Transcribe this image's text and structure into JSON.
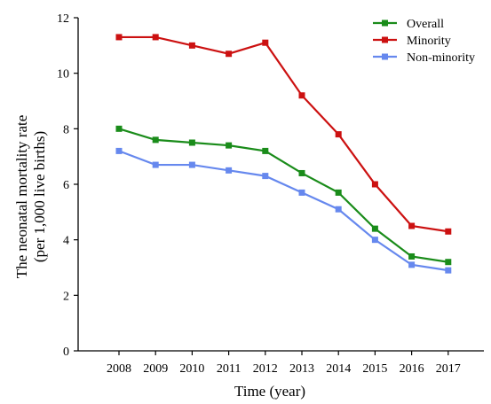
{
  "chart_data": {
    "type": "line",
    "title": "",
    "xlabel": "Time (year)",
    "ylabel_lines": [
      "The  neonatal mortality rate",
      "(per 1,000 live births)"
    ],
    "x": [
      "2008",
      "2009",
      "2010",
      "2011",
      "2012",
      "2013",
      "2014",
      "2015",
      "2016",
      "2017"
    ],
    "ylim": [
      0,
      12
    ],
    "yticks": [
      "0",
      "2",
      "4",
      "6",
      "8",
      "10",
      "12"
    ],
    "grid": false,
    "legend_position": "top-right",
    "series": [
      {
        "name": "Overall",
        "color": "#1a8c1a",
        "values": [
          8.0,
          7.6,
          7.5,
          7.4,
          7.2,
          6.4,
          5.7,
          4.4,
          3.4,
          3.2
        ]
      },
      {
        "name": "Minority",
        "color": "#cc1111",
        "values": [
          11.3,
          11.3,
          11.0,
          10.7,
          11.1,
          9.2,
          7.8,
          6.0,
          4.5,
          4.3
        ]
      },
      {
        "name": "Non-minority",
        "color": "#6688ee",
        "values": [
          7.2,
          6.7,
          6.7,
          6.5,
          6.3,
          5.7,
          5.1,
          4.0,
          3.1,
          2.9
        ]
      }
    ]
  }
}
